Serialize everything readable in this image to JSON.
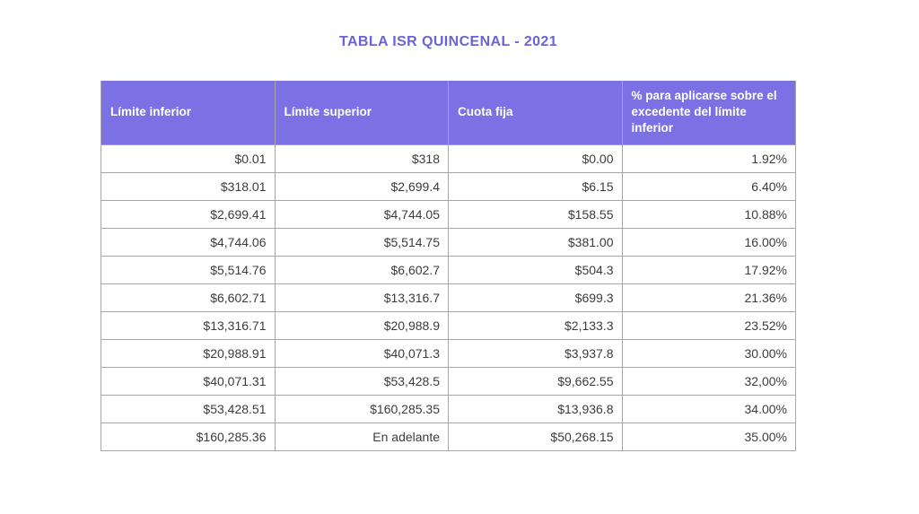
{
  "title": "TABLA ISR QUINCENAL - 2021",
  "colors": {
    "accent": "#6c63da",
    "header_bg": "#7b70e4",
    "header_sep": "#6a5fd1",
    "header_text": "#ffffff",
    "cell_text": "#3c3c3c",
    "border": "#a6a6a6",
    "page_bg": "#ffffff"
  },
  "chart_data": {
    "type": "table",
    "title": "TABLA ISR QUINCENAL - 2021",
    "columns": [
      "Límite inferior",
      "Límite superior",
      "Cuota fija",
      "% para aplicarse sobre el excedente del límite inferior"
    ],
    "rows": [
      [
        "$0.01",
        "$318",
        "$0.00",
        "1.92%"
      ],
      [
        "$318.01",
        "$2,699.4",
        "$6.15",
        "6.40%"
      ],
      [
        "$2,699.41",
        "$4,744.05",
        "$158.55",
        "10.88%"
      ],
      [
        "$4,744.06",
        "$5,514.75",
        "$381.00",
        "16.00%"
      ],
      [
        "$5,514.76",
        "$6,602.7",
        "$504.3",
        "17.92%"
      ],
      [
        "$6,602.71",
        "$13,316.7",
        "$699.3",
        "21.36%"
      ],
      [
        "$13,316.71",
        "$20,988.9",
        "$2,133.3",
        "23.52%"
      ],
      [
        "$20,988.91",
        "$40,071.3",
        "$3,937.8",
        "30.00%"
      ],
      [
        "$40,071.31",
        "$53,428.5",
        "$9,662.55",
        "32,00%"
      ],
      [
        "$53,428.51",
        "$160,285.35",
        "$13,936.8",
        "34.00%"
      ],
      [
        "$160,285.36",
        "En adelante",
        "$50,268.15",
        "35.00%"
      ]
    ]
  }
}
